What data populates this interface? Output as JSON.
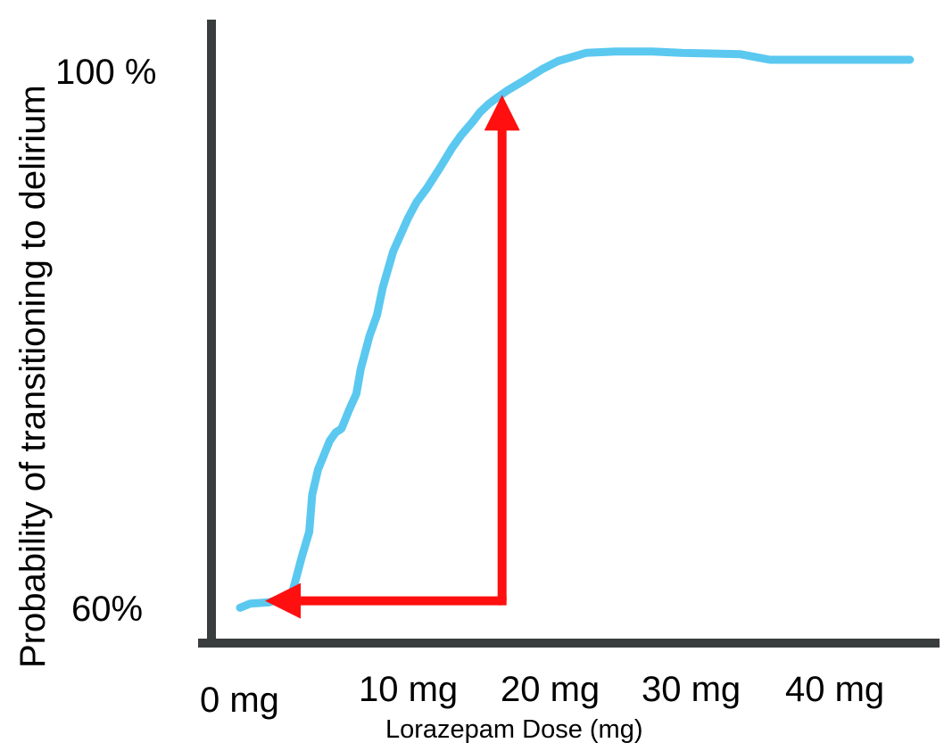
{
  "chart_data": {
    "type": "line",
    "xlabel": "Lorazepam Dose (mg)",
    "ylabel": "Probability of transitioning to delirium",
    "x_tick_labels": [
      "0 mg",
      "10 mg",
      "20 mg",
      "30 mg",
      "40 mg"
    ],
    "y_tick_labels": [
      "100 %",
      "60%"
    ],
    "grid": false,
    "legend": "none",
    "colors": {
      "axis": "#3a3d3d",
      "curve": "#5bc8f0",
      "arrow": "#ff0f0f"
    },
    "series": [
      {
        "x": [
          0.0,
          0.7,
          2.0,
          3.5,
          4.2,
          4.7,
          4.9,
          5.3,
          6.1,
          6.5,
          6.8,
          6.9,
          7.1,
          7.4,
          7.9,
          8.2,
          8.4,
          8.8,
          9.3,
          9.7,
          10.4,
          11.4,
          12.0,
          12.7,
          13.6,
          14.4,
          15.0,
          15.8,
          16.3,
          16.9,
          17.4,
          18.2,
          19.3,
          20.5,
          21.6,
          23.5,
          25.5,
          28.0,
          30.0,
          34.0,
          35.0,
          36.0,
          45.5
        ],
        "y": [
          60.3,
          60.6,
          60.7,
          61.2,
          64.0,
          65.8,
          68.5,
          70.3,
          72.4,
          73.0,
          73.2,
          73.3,
          73.8,
          74.6,
          75.8,
          77.6,
          78.4,
          80.0,
          81.5,
          83.5,
          86.1,
          88.5,
          89.7,
          90.7,
          92.2,
          93.6,
          94.5,
          95.5,
          96.2,
          96.8,
          97.2,
          97.8,
          98.5,
          99.3,
          99.9,
          100.5,
          100.6,
          100.6,
          100.5,
          100.4,
          100.2,
          100.0,
          100.0
        ]
      }
    ],
    "annotations": [
      {
        "type": "arrow",
        "points": [
          [
            17.8,
            60.8
          ],
          [
            17.8,
            95.0
          ]
        ],
        "head": "end"
      },
      {
        "type": "arrow",
        "points": [
          [
            17.8,
            60.8
          ],
          [
            4.0,
            60.8
          ]
        ],
        "head": "end"
      }
    ]
  }
}
